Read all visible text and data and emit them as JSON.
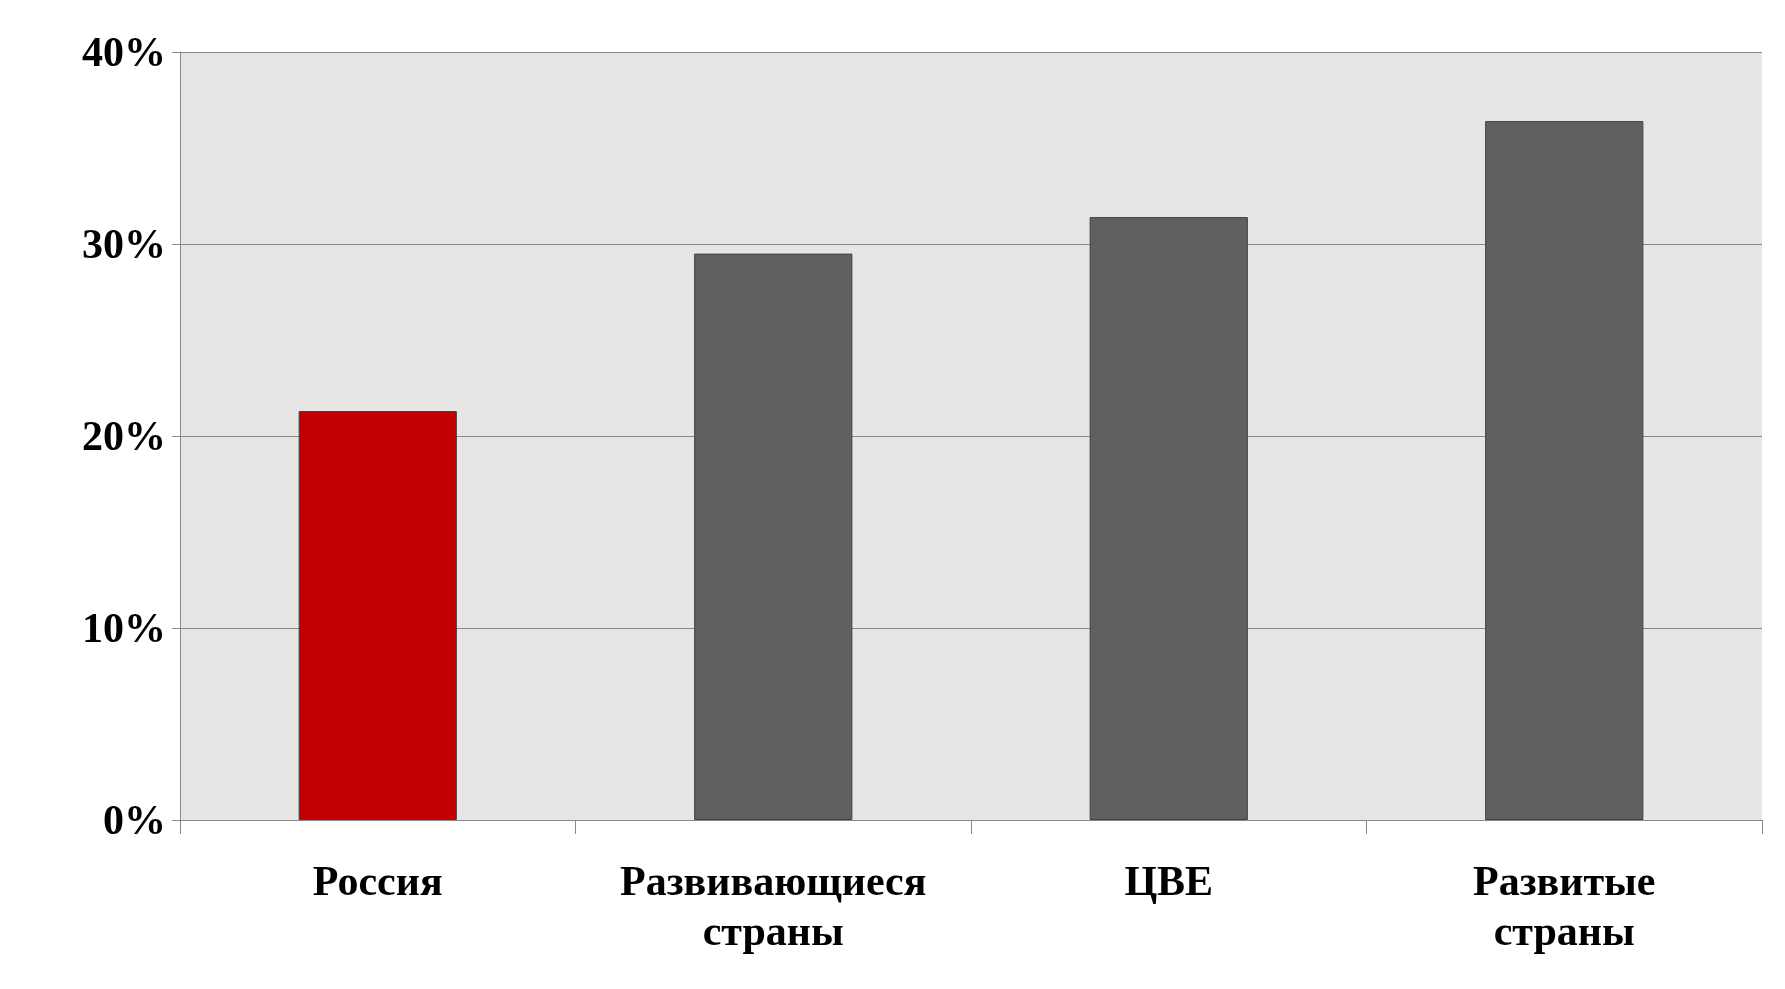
{
  "chart_data": {
    "type": "bar",
    "categories": [
      "Россия",
      "Развивающиеся страны",
      "ЦВЕ",
      "Развитые страны"
    ],
    "values": [
      21.3,
      29.5,
      31.4,
      36.4
    ],
    "colors": [
      "#c00000",
      "#606060",
      "#606060",
      "#606060"
    ],
    "ylim": [
      0,
      40
    ],
    "yticks": [
      {
        "value": 0,
        "label": "0%"
      },
      {
        "value": 10,
        "label": "10%"
      },
      {
        "value": 20,
        "label": "20%"
      },
      {
        "value": 30,
        "label": "30%"
      },
      {
        "value": 40,
        "label": "40%"
      }
    ],
    "grid": "y"
  }
}
